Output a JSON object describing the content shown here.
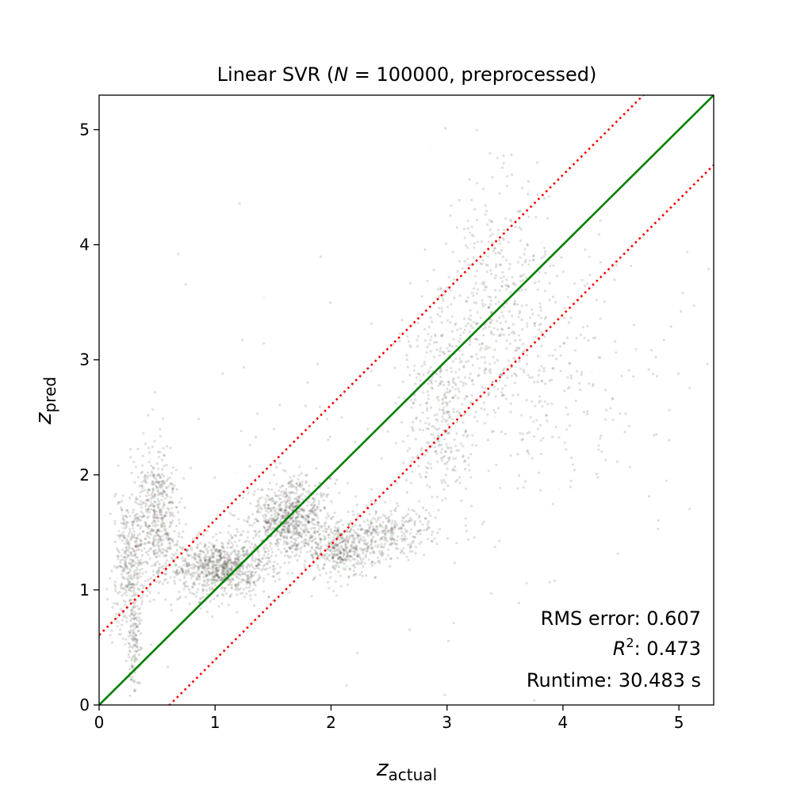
{
  "chart_data": {
    "type": "scatter",
    "title": {
      "prefix": "Linear SVR (",
      "var": "N",
      "suffix": " = 100000, preprocessed)"
    },
    "xlabel": {
      "base": "z",
      "sub": "actual"
    },
    "ylabel": {
      "base": "z",
      "sub": "pred"
    },
    "xlim": [
      0,
      5.3
    ],
    "ylim": [
      0,
      5.3
    ],
    "xticks": [
      0,
      1,
      2,
      3,
      4,
      5
    ],
    "yticks": [
      0,
      1,
      2,
      3,
      4,
      5
    ],
    "xtick_labels": [
      "0",
      "1",
      "2",
      "3",
      "4",
      "5"
    ],
    "ytick_labels": [
      "0",
      "1",
      "2",
      "3",
      "4",
      "5"
    ],
    "grid": false,
    "identity_line": {
      "slope": 1,
      "intercept": 0,
      "color": "#008000",
      "style": "solid"
    },
    "outlier_bounds": {
      "offset": 0.607,
      "color": "#ff0000",
      "style": "dotted"
    },
    "scatter": {
      "colors": [
        "#3c2a1e",
        "#2a3a1c",
        "#4a2030",
        "#1e2a2a"
      ],
      "highlight_color": "#80ff80",
      "opacity": 0.1
    },
    "stats": {
      "rms_label": "RMS error: ",
      "rms_value": "0.607",
      "r2_base": "R",
      "r2_sup": "2",
      "r2_sep": ": ",
      "r2_value": "0.473",
      "runtime_label": "Runtime: ",
      "runtime_value": "30.483 s"
    }
  }
}
